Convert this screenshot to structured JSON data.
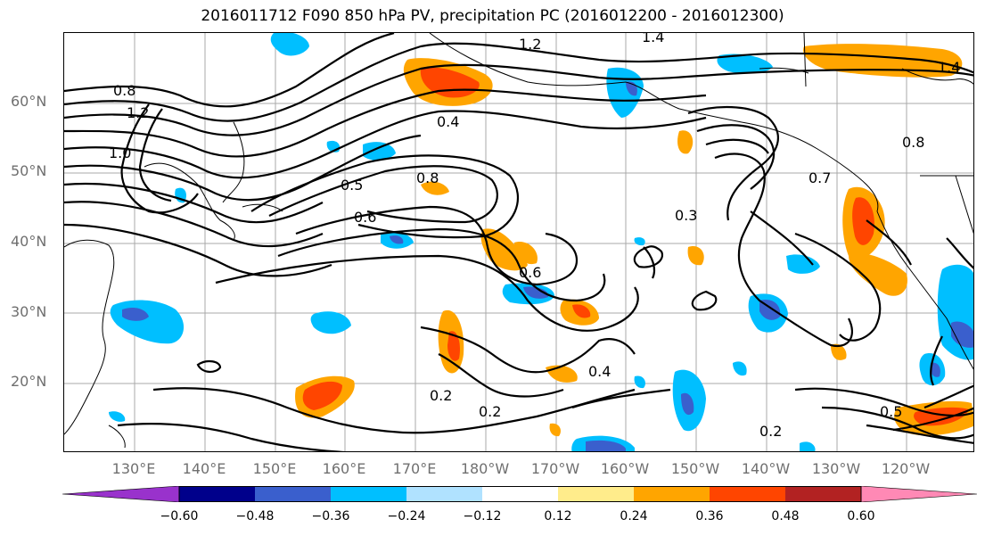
{
  "title": "2016011712 F090 850 hPa PV, precipitation PC (2016012200 - 2016012300)",
  "lat_labels": [
    "60°N",
    "50°N",
    "40°N",
    "30°N",
    "20°N"
  ],
  "lon_labels": [
    "130°E",
    "140°E",
    "150°E",
    "160°E",
    "170°E",
    "180°W",
    "170°W",
    "160°W",
    "150°W",
    "140°W",
    "130°W",
    "120°W"
  ],
  "contour_labels": [
    "1.2",
    "1.4",
    "0.8",
    "1.0",
    "0.5",
    "0.4",
    "0.6",
    "0.3",
    "0.2",
    "0.7",
    "0.4",
    "0.2",
    "0.5",
    "0.2",
    "1.2",
    "1.4",
    "0.8",
    "0.8",
    "0.6"
  ],
  "colorbar": {
    "ticks": [
      "−0.60",
      "−0.48",
      "−0.36",
      "−0.24",
      "−0.12",
      "0.12",
      "0.24",
      "0.36",
      "0.48",
      "0.60"
    ],
    "colors": [
      "#9932cc",
      "#00008b",
      "#3a5fcd",
      "#00bfff",
      "#b0e2ff",
      "#ffffff",
      "#ffec8b",
      "#ffa500",
      "#ff4500",
      "#b22222",
      "#ff89b5"
    ]
  }
}
